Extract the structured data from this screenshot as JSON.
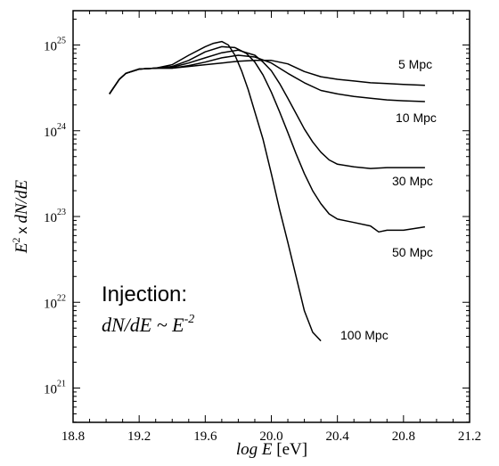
{
  "chart_data": {
    "type": "line",
    "xlabel": {
      "var": "log E",
      "unit": "[eV]"
    },
    "ylabel": {
      "e": "E",
      "exp": "2",
      "x": "x",
      "rest": "dN/dE"
    },
    "xlim": [
      18.8,
      21.2
    ],
    "ylim_log10": [
      20.6,
      25.4
    ],
    "y_scale": "log",
    "grid": false,
    "x_ticks": [
      "18.8",
      "19.2",
      "19.6",
      "20.0",
      "20.4",
      "20.8",
      "21.2"
    ],
    "y_ticks": [
      {
        "base": "10",
        "exp": "21"
      },
      {
        "base": "10",
        "exp": "22"
      },
      {
        "base": "10",
        "exp": "23"
      },
      {
        "base": "10",
        "exp": "24"
      },
      {
        "base": "10",
        "exp": "25"
      }
    ],
    "annotation": {
      "title": "Injection:",
      "formula": "dN/dE ~ E",
      "formula_exp": "-2"
    },
    "series": [
      {
        "name": "5 Mpc",
        "x": [
          19.02,
          19.08,
          19.12,
          19.2,
          19.3,
          19.4,
          19.5,
          19.6,
          19.7,
          19.8,
          19.9,
          20.0,
          20.1,
          20.2,
          20.3,
          20.4,
          20.5,
          20.6,
          20.7,
          20.8,
          20.93
        ],
        "y": [
          24.43,
          24.6,
          24.67,
          24.72,
          24.73,
          24.73,
          24.75,
          24.77,
          24.79,
          24.81,
          24.82,
          24.82,
          24.78,
          24.69,
          24.63,
          24.6,
          24.58,
          24.56,
          24.55,
          24.54,
          24.53
        ]
      },
      {
        "name": "10 Mpc",
        "x": [
          19.02,
          19.08,
          19.12,
          19.2,
          19.3,
          19.4,
          19.5,
          19.6,
          19.7,
          19.8,
          19.9,
          20.0,
          20.1,
          20.2,
          20.3,
          20.4,
          20.5,
          20.6,
          20.7,
          20.8,
          20.93
        ],
        "y": [
          24.43,
          24.6,
          24.67,
          24.72,
          24.73,
          24.73,
          24.76,
          24.8,
          24.85,
          24.88,
          24.86,
          24.79,
          24.67,
          24.56,
          24.47,
          24.43,
          24.4,
          24.38,
          24.36,
          24.35,
          24.34
        ]
      },
      {
        "name": "30 Mpc",
        "x": [
          19.02,
          19.08,
          19.12,
          19.2,
          19.3,
          19.4,
          19.5,
          19.6,
          19.7,
          19.8,
          19.9,
          19.95,
          20.0,
          20.05,
          20.1,
          20.15,
          20.2,
          20.25,
          20.3,
          20.35,
          20.4,
          20.5,
          20.6,
          20.7,
          20.8,
          20.93
        ],
        "y": [
          24.43,
          24.6,
          24.67,
          24.72,
          24.73,
          24.74,
          24.79,
          24.85,
          24.91,
          24.94,
          24.88,
          24.8,
          24.7,
          24.55,
          24.38,
          24.2,
          24.02,
          23.87,
          23.75,
          23.66,
          23.61,
          23.58,
          23.56,
          23.57,
          23.57,
          23.57
        ]
      },
      {
        "name": "50 Mpc",
        "x": [
          19.02,
          19.08,
          19.12,
          19.2,
          19.3,
          19.4,
          19.5,
          19.6,
          19.7,
          19.78,
          19.85,
          19.9,
          19.95,
          20.0,
          20.05,
          20.1,
          20.15,
          20.2,
          20.25,
          20.3,
          20.35,
          20.4,
          20.5,
          20.6,
          20.65,
          20.7,
          20.8,
          20.9,
          20.93
        ],
        "y": [
          24.43,
          24.6,
          24.67,
          24.72,
          24.73,
          24.75,
          24.82,
          24.92,
          24.98,
          24.97,
          24.9,
          24.8,
          24.65,
          24.45,
          24.22,
          23.98,
          23.73,
          23.5,
          23.3,
          23.15,
          23.03,
          22.97,
          22.93,
          22.89,
          22.82,
          22.84,
          22.84,
          22.87,
          22.88
        ]
      },
      {
        "name": "100 Mpc",
        "x": [
          19.02,
          19.08,
          19.12,
          19.2,
          19.3,
          19.4,
          19.5,
          19.6,
          19.65,
          19.7,
          19.74,
          19.78,
          19.82,
          19.86,
          19.9,
          19.95,
          20.0,
          20.05,
          20.1,
          20.15,
          20.2,
          20.25,
          20.3
        ],
        "y": [
          24.43,
          24.6,
          24.67,
          24.72,
          24.73,
          24.77,
          24.88,
          24.98,
          25.02,
          25.04,
          25.0,
          24.88,
          24.7,
          24.48,
          24.22,
          23.9,
          23.5,
          23.08,
          22.7,
          22.3,
          21.9,
          21.65,
          21.55
        ]
      }
    ]
  }
}
